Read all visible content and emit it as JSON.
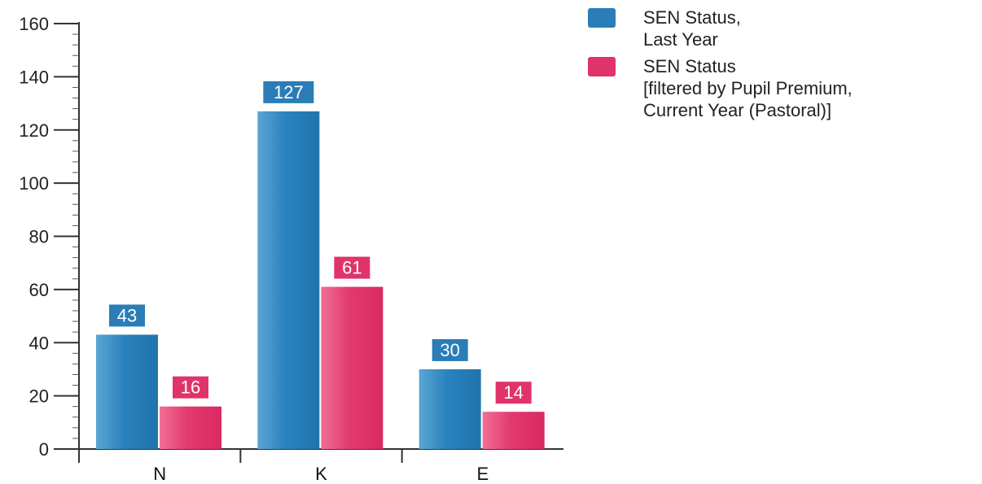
{
  "chart_data": {
    "type": "bar",
    "categories": [
      "N",
      "K",
      "E"
    ],
    "series": [
      {
        "name": "SEN Status,\nLast Year",
        "values": [
          43,
          127,
          30
        ],
        "color": "#2a7db6"
      },
      {
        "name": "SEN Status\n[filtered by Pupil Premium,\nCurrent Year (Pastoral)]",
        "values": [
          16,
          61,
          14
        ],
        "color": "#e0336a"
      }
    ],
    "ylim": [
      0,
      160
    ],
    "yticks": [
      0,
      20,
      40,
      60,
      80,
      100,
      120,
      140,
      160
    ],
    "grid": false,
    "legend_position": "top-right",
    "data_labels": true
  }
}
